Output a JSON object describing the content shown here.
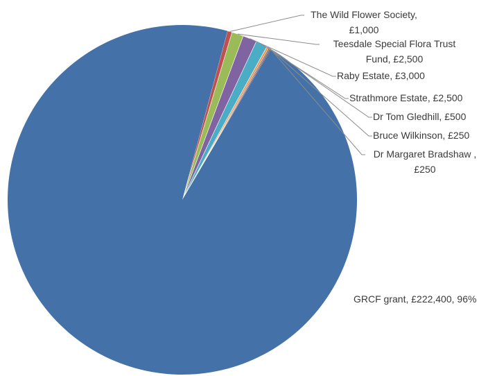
{
  "chart_data": {
    "type": "pie",
    "title": "",
    "slices": [
      {
        "name": "GRCF grant",
        "value": 222400,
        "label_line1": "GRCF grant, £222,400, 96%",
        "label_line2": "",
        "color": "#4471a8"
      },
      {
        "name": "The Wild Flower Society",
        "value": 1000,
        "label_line1": "The Wild Flower Society,",
        "label_line2": "£1,000",
        "color": "#c0504d"
      },
      {
        "name": "Teesdale Special Flora Trust Fund",
        "value": 2500,
        "label_line1": "Teesdale Special Flora Trust",
        "label_line2": "Fund, £2,500",
        "color": "#9bbb59"
      },
      {
        "name": "Raby Estate",
        "value": 3000,
        "label_line1": "Raby Estate, £3,000",
        "label_line2": "",
        "color": "#8064a2"
      },
      {
        "name": "Strathmore Estate",
        "value": 2500,
        "label_line1": "Strathmore Estate, £2,500",
        "label_line2": "",
        "color": "#4bacc6"
      },
      {
        "name": "Dr Tom Gledhill",
        "value": 500,
        "label_line1": "Dr Tom Gledhill, £500",
        "label_line2": "",
        "color": "#f79646"
      },
      {
        "name": "Bruce Wilkinson",
        "value": 250,
        "label_line1": "Bruce Wilkinson, £250",
        "label_line2": "",
        "color": "#2c4d75"
      },
      {
        "name": "Dr Margaret Bradshaw",
        "value": 250,
        "label_line1": "Dr Margaret Bradshaw ,",
        "label_line2": "£250",
        "color": "#772c2a"
      }
    ]
  }
}
